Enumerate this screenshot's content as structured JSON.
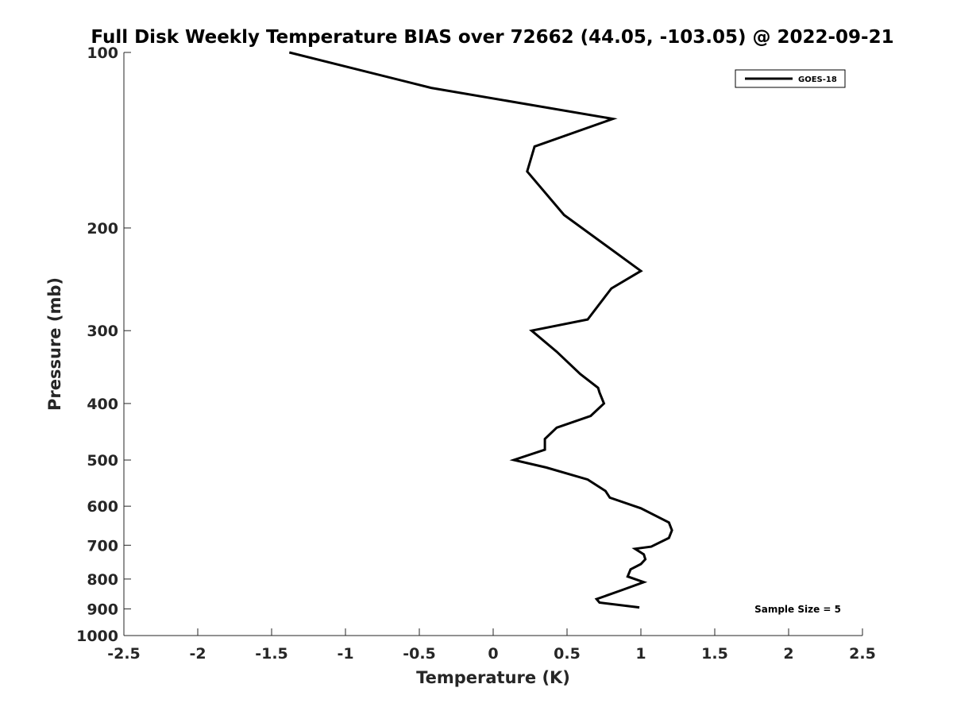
{
  "chart_data": {
    "type": "line",
    "title": "Full Disk Weekly Temperature BIAS over 72662 (44.05, -103.05) @ 2022-09-21",
    "xlabel": "Temperature (K)",
    "ylabel": "Pressure (mb)",
    "xlim": [
      -2.5,
      2.5
    ],
    "ylim": [
      100,
      1000
    ],
    "y_scale": "log",
    "y_reversed": true,
    "x_ticks": [
      -2.5,
      -2,
      -1.5,
      -1,
      -0.5,
      0,
      0.5,
      1,
      1.5,
      2,
      2.5
    ],
    "x_tick_labels": [
      "-2.5",
      "-2",
      "-1.5",
      "-1",
      "-0.5",
      "0",
      "0.5",
      "1",
      "1.5",
      "2",
      "2.5"
    ],
    "y_ticks": [
      100,
      200,
      300,
      400,
      500,
      600,
      700,
      800,
      900,
      1000
    ],
    "y_tick_labels": [
      "100",
      "200",
      "300",
      "400",
      "500",
      "600",
      "700",
      "800",
      "900",
      "1000"
    ],
    "grid": false,
    "legend_position": "top-right",
    "series": [
      {
        "name": "GOES-18",
        "color": "#000000",
        "x": [
          -1.38,
          -0.42,
          0.81,
          0.28,
          0.23,
          0.48,
          1.0,
          0.8,
          0.64,
          0.26,
          0.43,
          0.59,
          0.71,
          0.72,
          0.75,
          0.66,
          0.43,
          0.35,
          0.35,
          0.14,
          0.36,
          0.64,
          0.76,
          0.79,
          1.0,
          1.19,
          1.21,
          1.19,
          1.07,
          0.96,
          1.02,
          1.03,
          1.0,
          0.93,
          0.91,
          1.02,
          0.87,
          0.7,
          0.72,
          0.99
        ],
        "y": [
          100,
          115,
          130,
          145,
          160,
          190,
          237,
          254,
          287,
          300,
          326,
          356,
          376,
          383,
          400,
          420,
          440,
          460,
          480,
          500,
          515,
          540,
          565,
          580,
          605,
          640,
          660,
          680,
          704,
          710,
          726,
          740,
          754,
          770,
          792,
          810,
          836,
          866,
          878,
          895
        ]
      }
    ],
    "annotations": [
      {
        "text": "Sample Size = 5",
        "position": "bottom-right"
      }
    ]
  }
}
